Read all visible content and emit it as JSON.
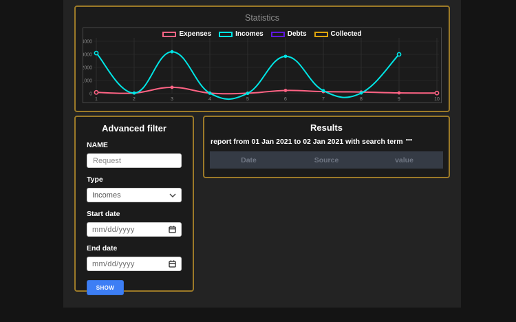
{
  "colors": {
    "page_bg": "#141414",
    "wrapper_bg": "#232323",
    "panel_bg": "#1b1b1b",
    "panel_border_gold": "#9c7a28",
    "button_blue": "#3d7ef5",
    "table_header_bg": "#353b45",
    "expenses_pink": "#ff6384",
    "incomes_cyan": "#00e5e5",
    "debts_purple": "#5e17dc",
    "collected_gold": "#dca40e"
  },
  "statistics": {
    "title": "Statistics"
  },
  "chart_data": {
    "type": "line",
    "title": "Statistics",
    "x": [
      1,
      2,
      3,
      4,
      5,
      6,
      7,
      8,
      9,
      10
    ],
    "series": [
      {
        "name": "Expenses",
        "color": "#ff6384",
        "values": [
          90,
          40,
          480,
          40,
          30,
          240,
          150,
          120,
          50,
          40
        ]
      },
      {
        "name": "Incomes",
        "color": "#00e5e5",
        "values": [
          3100,
          40,
          3200,
          30,
          20,
          2850,
          220,
          40,
          3000
        ]
      },
      {
        "name": "Debts",
        "color": "#5e17dc",
        "values": []
      },
      {
        "name": "Collected",
        "color": "#dca40e",
        "values": []
      }
    ],
    "xlabel": "",
    "ylabel": "",
    "ylim": [
      0,
      4000
    ],
    "yticks": [
      0,
      1000,
      2000,
      3000,
      4000
    ],
    "grid": true,
    "legend_position": "top"
  },
  "filter": {
    "title": "Advanced filter",
    "name_label": "NAME",
    "name_placeholder": "Request",
    "name_value": "",
    "type_label": "Type",
    "type_value": "Incomes",
    "start_label": "Start date",
    "start_placeholder": "mm/dd/yyyy",
    "end_label": "End date",
    "end_placeholder": "mm/dd/yyyy",
    "show_label": "SHOW"
  },
  "results": {
    "title": "Results",
    "report_text": "report from 01 Jan 2021 to 02 Jan 2021 with search term",
    "search_term": "\"\"",
    "columns": [
      "Date",
      "Source",
      "value"
    ],
    "rows": []
  }
}
